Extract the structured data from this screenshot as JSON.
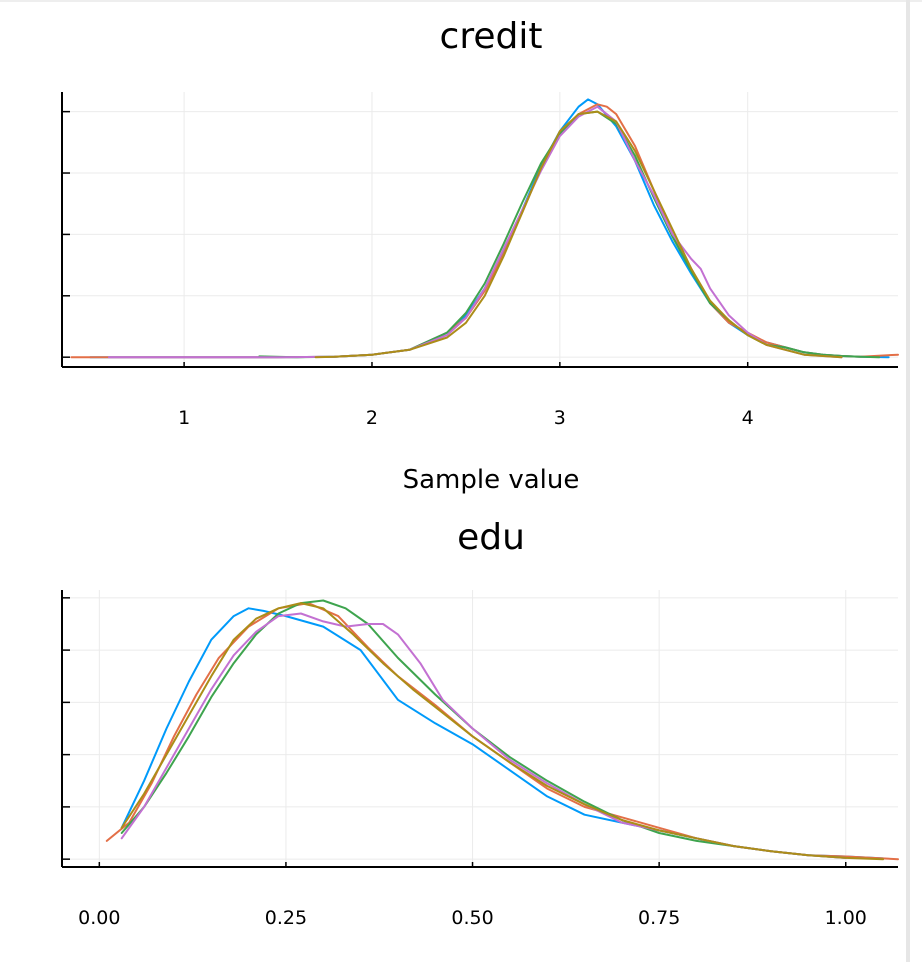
{
  "colors": {
    "series": [
      "#009AFA",
      "#E36F47",
      "#3EA44E",
      "#C371D2",
      "#AC8D18"
    ],
    "grid": "#EBEBEB",
    "axis": "#000000"
  },
  "chart_data": [
    {
      "type": "line",
      "title": "credit",
      "xlabel": "Sample value",
      "ylabel": "",
      "grid": true,
      "legend": "none",
      "xlim": [
        0.35,
        4.8
      ],
      "ylim": [
        -0.04,
        1.08
      ],
      "xticks": [
        1,
        2,
        3,
        4
      ],
      "xtick_labels": [
        "1",
        "2",
        "3",
        "4"
      ],
      "yticks": [
        0,
        0.25,
        0.5,
        0.75,
        1.0
      ],
      "ytick_labels": [
        "",
        "",
        "",
        "",
        ""
      ],
      "series": [
        {
          "x": [
            0.5,
            1.0,
            1.5,
            1.8,
            2.0,
            2.2,
            2.4,
            2.5,
            2.6,
            2.7,
            2.8,
            2.9,
            3.0,
            3.1,
            3.15,
            3.2,
            3.3,
            3.4,
            3.5,
            3.6,
            3.7,
            3.8,
            3.9,
            4.0,
            4.1,
            4.2,
            4.3,
            4.4,
            4.5,
            4.6,
            4.75
          ],
          "y": [
            0.0,
            0.0,
            0.0,
            0.002,
            0.01,
            0.03,
            0.1,
            0.17,
            0.28,
            0.43,
            0.6,
            0.78,
            0.92,
            1.02,
            1.05,
            1.03,
            0.94,
            0.8,
            0.62,
            0.47,
            0.34,
            0.22,
            0.14,
            0.09,
            0.06,
            0.04,
            0.02,
            0.01,
            0.005,
            0.002,
            0.0
          ]
        },
        {
          "x": [
            0.4,
            1.0,
            1.5,
            1.8,
            2.0,
            2.2,
            2.4,
            2.5,
            2.6,
            2.7,
            2.8,
            2.9,
            3.0,
            3.1,
            3.2,
            3.25,
            3.3,
            3.4,
            3.5,
            3.6,
            3.7,
            3.8,
            3.9,
            4.0,
            4.1,
            4.2,
            4.3,
            4.4,
            4.5,
            4.6,
            4.8
          ],
          "y": [
            0.0,
            0.0,
            0.0,
            0.002,
            0.01,
            0.03,
            0.1,
            0.16,
            0.27,
            0.42,
            0.59,
            0.77,
            0.91,
            0.99,
            1.03,
            1.02,
            0.99,
            0.86,
            0.68,
            0.5,
            0.36,
            0.22,
            0.14,
            0.1,
            0.06,
            0.04,
            0.02,
            0.01,
            0.005,
            0.002,
            0.01
          ]
        },
        {
          "x": [
            1.4,
            1.6,
            1.8,
            2.0,
            2.2,
            2.4,
            2.5,
            2.6,
            2.7,
            2.8,
            2.9,
            3.0,
            3.1,
            3.2,
            3.3,
            3.4,
            3.5,
            3.6,
            3.7,
            3.8,
            3.9,
            4.0,
            4.1,
            4.2,
            4.3,
            4.4,
            4.5,
            4.6,
            4.7
          ],
          "y": [
            0.003,
            0.0,
            0.002,
            0.01,
            0.03,
            0.1,
            0.18,
            0.3,
            0.46,
            0.63,
            0.79,
            0.91,
            0.99,
            1.0,
            0.95,
            0.82,
            0.65,
            0.49,
            0.35,
            0.22,
            0.15,
            0.09,
            0.05,
            0.04,
            0.02,
            0.01,
            0.005,
            0.002,
            0.0
          ]
        },
        {
          "x": [
            0.6,
            1.0,
            1.5,
            1.8,
            2.0,
            2.2,
            2.4,
            2.5,
            2.6,
            2.7,
            2.8,
            2.9,
            3.0,
            3.1,
            3.2,
            3.3,
            3.4,
            3.5,
            3.6,
            3.7,
            3.75,
            3.8,
            3.9,
            4.0,
            4.1,
            4.2,
            4.3,
            4.4,
            4.5
          ],
          "y": [
            0.0,
            0.0,
            0.0,
            0.002,
            0.01,
            0.03,
            0.09,
            0.16,
            0.28,
            0.44,
            0.6,
            0.76,
            0.9,
            0.98,
            1.02,
            0.96,
            0.8,
            0.66,
            0.5,
            0.4,
            0.36,
            0.28,
            0.17,
            0.1,
            0.05,
            0.03,
            0.01,
            0.005,
            0.0
          ]
        },
        {
          "x": [
            1.7,
            1.8,
            2.0,
            2.2,
            2.4,
            2.5,
            2.6,
            2.7,
            2.8,
            2.9,
            3.0,
            3.1,
            3.2,
            3.3,
            3.4,
            3.5,
            3.6,
            3.7,
            3.8,
            3.9,
            4.0,
            4.1,
            4.2,
            4.3,
            4.4,
            4.5
          ],
          "y": [
            0.0,
            0.002,
            0.01,
            0.03,
            0.08,
            0.14,
            0.25,
            0.41,
            0.59,
            0.77,
            0.92,
            0.99,
            1.0,
            0.96,
            0.84,
            0.68,
            0.52,
            0.36,
            0.23,
            0.15,
            0.09,
            0.05,
            0.03,
            0.01,
            0.005,
            0.0
          ]
        }
      ]
    },
    {
      "type": "line",
      "title": "edu",
      "xlabel": "",
      "ylabel": "",
      "grid": true,
      "legend": "none",
      "xlim": [
        -0.05,
        1.07
      ],
      "ylim": [
        -0.03,
        1.03
      ],
      "xticks": [
        0.0,
        0.25,
        0.5,
        0.75,
        1.0
      ],
      "xtick_labels": [
        "0.00",
        "0.25",
        "0.50",
        "0.75",
        "1.00"
      ],
      "yticks": [
        0,
        0.2,
        0.4,
        0.6,
        0.8,
        1.0
      ],
      "ytick_labels": [
        "",
        "",
        "",
        "",
        "",
        ""
      ],
      "series": [
        {
          "x": [
            0.03,
            0.06,
            0.09,
            0.12,
            0.15,
            0.18,
            0.2,
            0.22,
            0.25,
            0.3,
            0.35,
            0.4,
            0.45,
            0.5,
            0.55,
            0.6,
            0.65,
            0.7,
            0.75,
            0.8,
            0.85,
            0.9,
            0.95,
            1.0,
            1.05
          ],
          "y": [
            0.12,
            0.3,
            0.5,
            0.68,
            0.84,
            0.93,
            0.96,
            0.95,
            0.93,
            0.89,
            0.8,
            0.61,
            0.52,
            0.44,
            0.34,
            0.24,
            0.17,
            0.14,
            0.11,
            0.08,
            0.05,
            0.03,
            0.015,
            0.01,
            0.003
          ]
        },
        {
          "x": [
            0.01,
            0.04,
            0.07,
            0.1,
            0.13,
            0.16,
            0.2,
            0.24,
            0.28,
            0.32,
            0.36,
            0.4,
            0.45,
            0.5,
            0.55,
            0.6,
            0.65,
            0.7,
            0.75,
            0.8,
            0.85,
            0.9,
            0.95,
            1.0,
            1.07
          ],
          "y": [
            0.07,
            0.14,
            0.29,
            0.47,
            0.63,
            0.77,
            0.89,
            0.96,
            0.98,
            0.93,
            0.81,
            0.7,
            0.59,
            0.47,
            0.37,
            0.27,
            0.2,
            0.16,
            0.12,
            0.08,
            0.05,
            0.03,
            0.015,
            0.01,
            0.0
          ]
        },
        {
          "x": [
            0.03,
            0.06,
            0.09,
            0.12,
            0.15,
            0.18,
            0.21,
            0.24,
            0.27,
            0.3,
            0.33,
            0.36,
            0.4,
            0.45,
            0.5,
            0.55,
            0.6,
            0.65,
            0.7,
            0.75,
            0.8,
            0.85,
            0.9,
            0.95,
            1.0
          ],
          "y": [
            0.1,
            0.2,
            0.33,
            0.47,
            0.62,
            0.75,
            0.86,
            0.94,
            0.98,
            0.99,
            0.96,
            0.9,
            0.77,
            0.63,
            0.5,
            0.39,
            0.3,
            0.22,
            0.15,
            0.1,
            0.07,
            0.05,
            0.03,
            0.015,
            0.005
          ]
        },
        {
          "x": [
            0.03,
            0.06,
            0.09,
            0.12,
            0.15,
            0.18,
            0.21,
            0.24,
            0.27,
            0.3,
            0.33,
            0.36,
            0.38,
            0.4,
            0.43,
            0.46,
            0.5,
            0.55,
            0.6,
            0.65,
            0.7,
            0.75,
            0.8,
            0.85,
            0.9,
            0.95,
            1.0
          ],
          "y": [
            0.08,
            0.2,
            0.35,
            0.5,
            0.65,
            0.78,
            0.87,
            0.93,
            0.94,
            0.91,
            0.89,
            0.9,
            0.9,
            0.86,
            0.75,
            0.61,
            0.5,
            0.38,
            0.29,
            0.21,
            0.14,
            0.11,
            0.08,
            0.05,
            0.03,
            0.015,
            0.005
          ]
        },
        {
          "x": [
            0.03,
            0.06,
            0.09,
            0.12,
            0.15,
            0.18,
            0.21,
            0.24,
            0.27,
            0.3,
            0.34,
            0.38,
            0.42,
            0.46,
            0.5,
            0.55,
            0.6,
            0.65,
            0.7,
            0.75,
            0.8,
            0.85,
            0.9,
            0.95,
            1.0,
            1.05
          ],
          "y": [
            0.12,
            0.25,
            0.4,
            0.55,
            0.7,
            0.84,
            0.92,
            0.96,
            0.98,
            0.96,
            0.86,
            0.75,
            0.65,
            0.56,
            0.47,
            0.37,
            0.28,
            0.21,
            0.15,
            0.11,
            0.08,
            0.05,
            0.03,
            0.015,
            0.005,
            0.0
          ]
        }
      ]
    }
  ]
}
